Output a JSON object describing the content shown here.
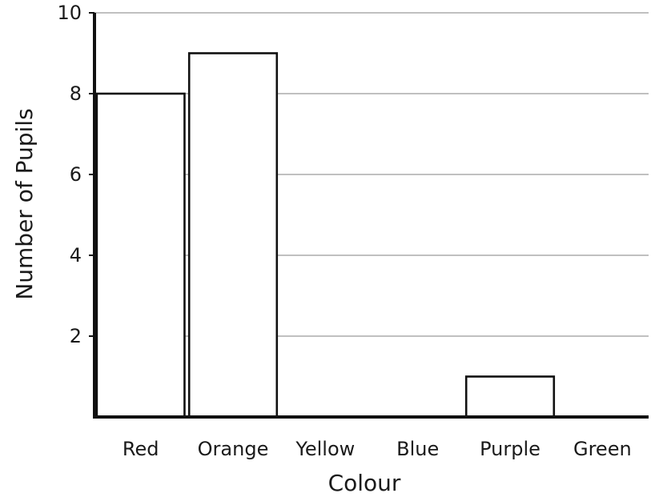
{
  "chart_data": {
    "type": "bar",
    "categories": [
      "Red",
      "Orange",
      "Yellow",
      "Blue",
      "Purple",
      "Green"
    ],
    "values": [
      8,
      9,
      0,
      0,
      1,
      0
    ],
    "xlabel": "Colour",
    "ylabel": "Number of Pupils",
    "ylim": [
      0,
      10
    ],
    "yticks": [
      2,
      4,
      6,
      8,
      10
    ],
    "grid": true,
    "bar_fill": "#ffffff",
    "bar_stroke": "#111111",
    "grid_color": "#9a9a9a",
    "axis_color": "#111111"
  }
}
